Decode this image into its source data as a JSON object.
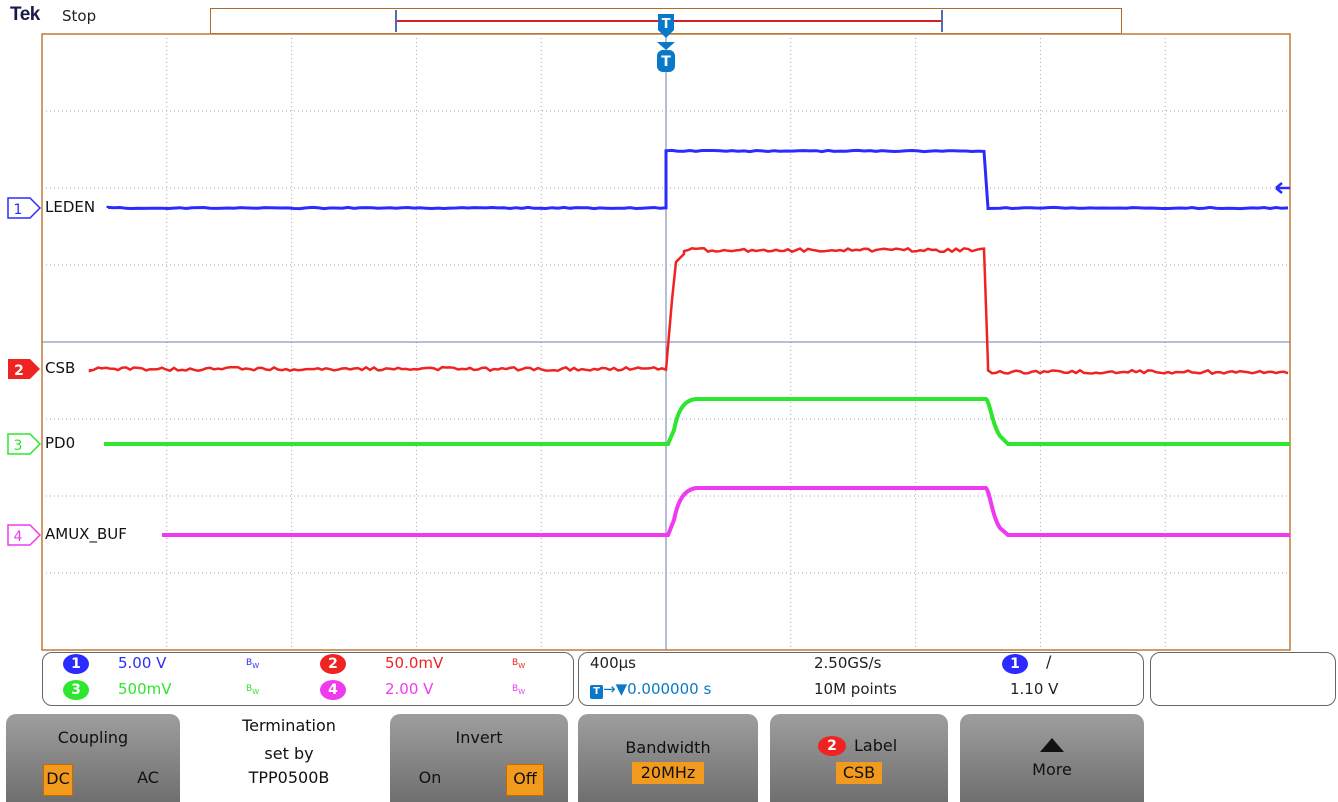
{
  "header": {
    "brand": "Tek",
    "run_state": "Stop"
  },
  "colors": {
    "ch1": "#2b2bff",
    "ch2": "#f02323",
    "ch3": "#2ee62e",
    "ch4": "#f03af0",
    "grid": "#aaaaaa",
    "border": "#c07a3a",
    "trigger": "#0a78c8",
    "menu_highlight": "#f29a1e"
  },
  "channels": [
    {
      "num": "1",
      "label": "LEDEN",
      "scale": "5.00 V",
      "bw": "B",
      "color": "#2b2bff"
    },
    {
      "num": "2",
      "label": "CSB",
      "scale": "50.0mV",
      "bw": "B",
      "color": "#f02323"
    },
    {
      "num": "3",
      "label": "PD0",
      "scale": "500mV",
      "bw": "B",
      "color": "#2ee62e"
    },
    {
      "num": "4",
      "label": "AMUX_BUF",
      "scale": "2.00 V",
      "bw": "B",
      "color": "#f03af0"
    }
  ],
  "icons": {
    "trigger_marker": "T",
    "trigger_level_arrow": "left-arrow-icon",
    "slope": "rising-edge-icon",
    "more": "up-triangle-icon"
  },
  "horizontal": {
    "timebase": "400µs",
    "sample_rate": "2.50GS/s",
    "trigger_delay": "0.000000 s",
    "record_length": "10M points"
  },
  "trigger": {
    "source": "1",
    "slope": "/",
    "level": "1.10 V"
  },
  "menu": {
    "coupling": {
      "title": "Coupling",
      "options": [
        "DC",
        "AC"
      ],
      "selected": "DC"
    },
    "termination": {
      "line1": "Termination",
      "line2": "set by",
      "line3": "TPP0500B"
    },
    "invert": {
      "title": "Invert",
      "options": [
        "On",
        "Off"
      ],
      "selected": "Off"
    },
    "bandwidth": {
      "title": "Bandwidth",
      "value": "20MHz"
    },
    "label": {
      "channel": "2",
      "title": "Label",
      "value": "CSB"
    },
    "more": {
      "title": "More"
    }
  }
}
